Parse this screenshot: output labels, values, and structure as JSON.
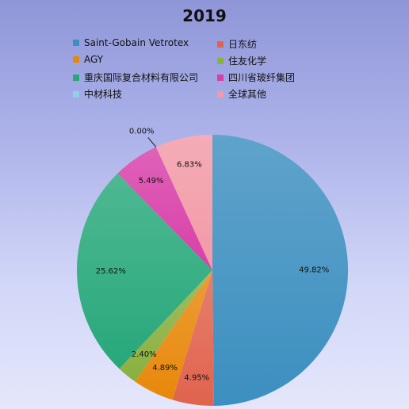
{
  "chart_data": {
    "type": "pie",
    "title": "2019",
    "legend_placement": "top",
    "slices": [
      {
        "name": "Saint-Gobain Vetrotex",
        "value": 49.82,
        "label": "49.82%",
        "color": "#3c8fc0"
      },
      {
        "name": "日东纺",
        "value": 4.95,
        "label": "4.95%",
        "color": "#e0634d"
      },
      {
        "name": "AGY",
        "value": 4.89,
        "label": "4.89%",
        "color": "#e8880a"
      },
      {
        "name": "住友化学",
        "value": 2.4,
        "label": "2.40%",
        "color": "#8ab040"
      },
      {
        "name": "重庆国际复合材料有限公司",
        "value": 25.62,
        "label": "25.62%",
        "color": "#27a87a"
      },
      {
        "name": "四川省玻纤集团",
        "value": 5.49,
        "label": "5.49%",
        "color": "#d83fa8"
      },
      {
        "name": "中材科技",
        "value": 0.0,
        "label": "0.00%",
        "color": "#8fd0e6"
      },
      {
        "name": "全球其他",
        "value": 6.83,
        "label": "6.83%",
        "color": "#f29aa6"
      }
    ]
  }
}
